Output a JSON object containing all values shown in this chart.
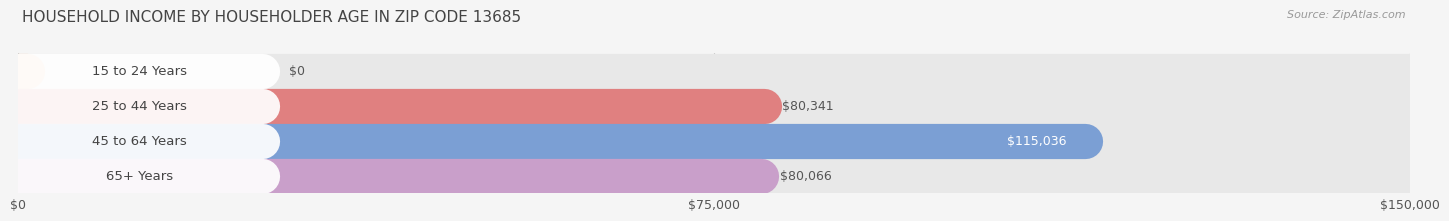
{
  "title": "HOUSEHOLD INCOME BY HOUSEHOLDER AGE IN ZIP CODE 13685",
  "source": "Source: ZipAtlas.com",
  "categories": [
    "15 to 24 Years",
    "25 to 44 Years",
    "45 to 64 Years",
    "65+ Years"
  ],
  "values": [
    0,
    80341,
    115036,
    80066
  ],
  "bar_colors": [
    "#f5c9a0",
    "#e08080",
    "#7b9fd4",
    "#c99fca"
  ],
  "value_label_inside": [
    false,
    false,
    true,
    false
  ],
  "xlim": [
    0,
    150000
  ],
  "xticks": [
    0,
    75000,
    150000
  ],
  "xtick_labels": [
    "$0",
    "$75,000",
    "$150,000"
  ],
  "background_color": "#f5f5f5",
  "bar_background_color": "#e8e8e8",
  "title_fontsize": 11,
  "source_fontsize": 8,
  "tick_fontsize": 9,
  "label_fontsize": 9,
  "category_fontsize": 9.5
}
